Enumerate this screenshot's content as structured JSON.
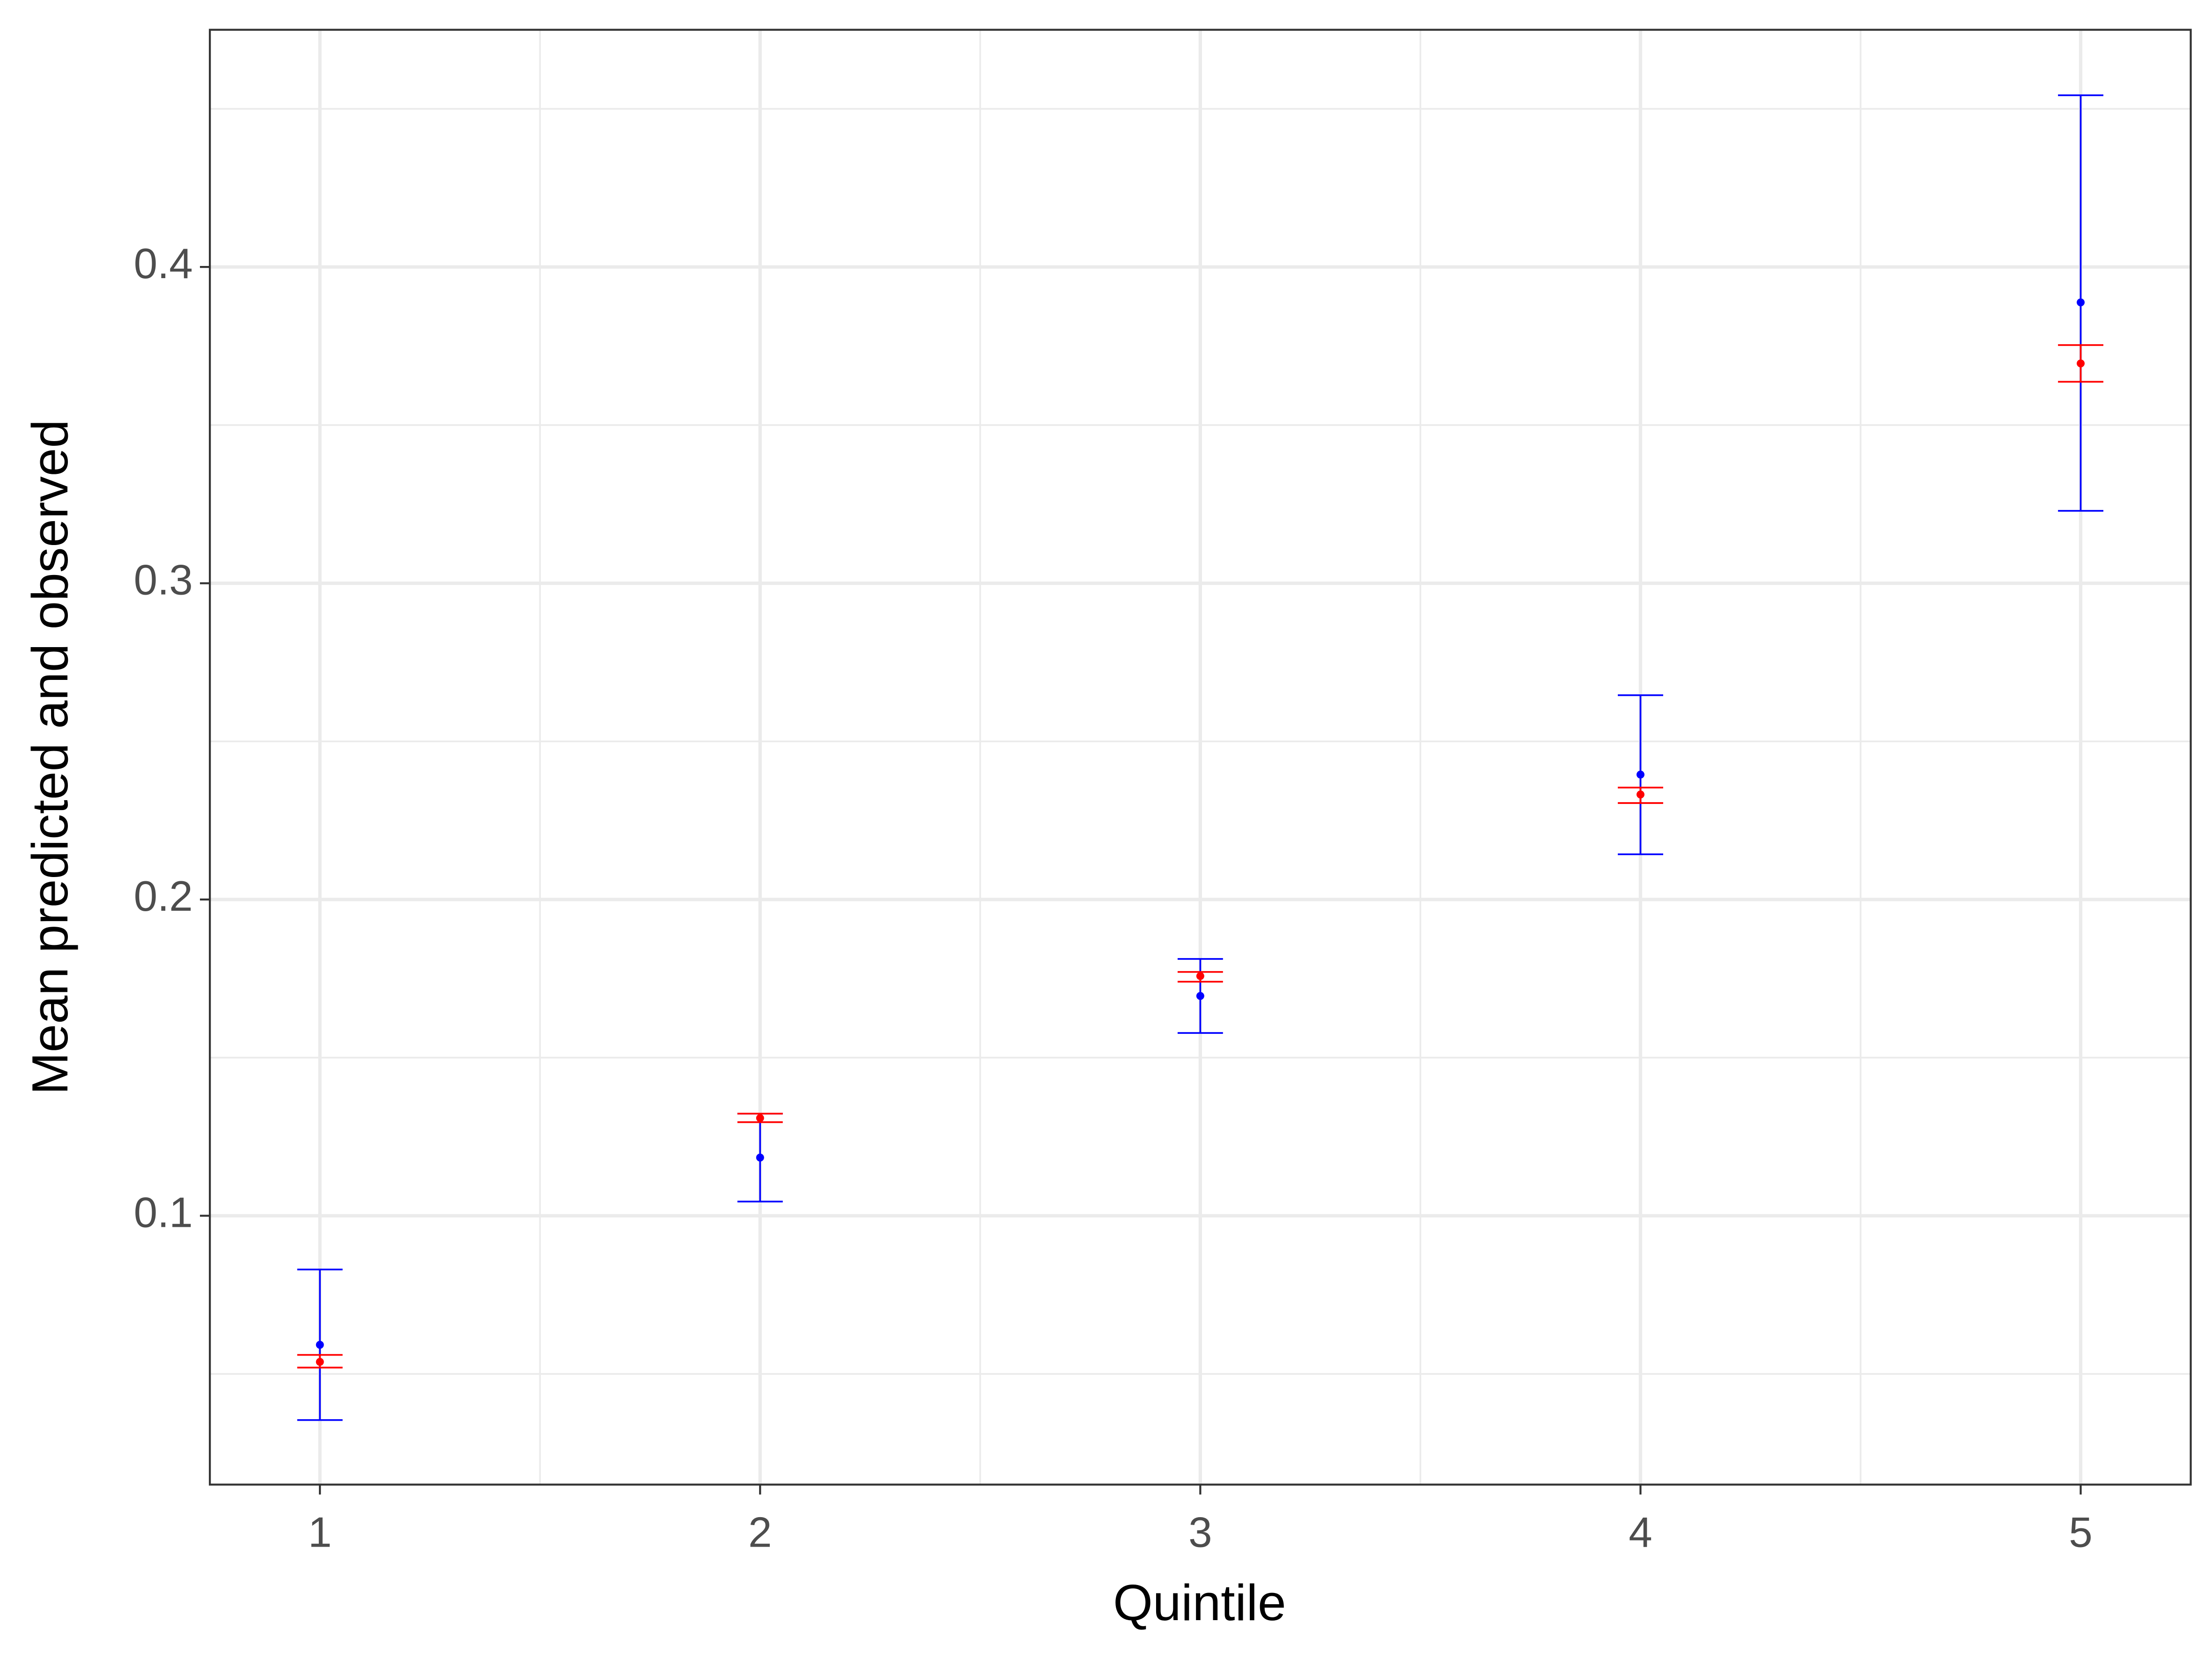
{
  "chart_data": {
    "type": "errorbar",
    "x_label": "Quintile",
    "y_label": "Mean predicted and observed",
    "xlim": [
      0.75,
      5.25
    ],
    "ylim": [
      0.015,
      0.475
    ],
    "xticks": [
      1,
      2,
      3,
      4,
      5
    ],
    "yticks": [
      0.1,
      0.2,
      0.3,
      0.4
    ],
    "xminor": [
      1.5,
      2.5,
      3.5,
      4.5
    ],
    "yminor": [
      0.05,
      0.15,
      0.25,
      0.35,
      0.45
    ],
    "grid": true,
    "series": [
      {
        "color": "#0000ff",
        "x": [
          1,
          2,
          3,
          4,
          5
        ],
        "values": [
          0.0592,
          0.1184,
          0.1695,
          0.2395,
          0.3888
        ],
        "lower": [
          0.0354,
          0.1045,
          0.1578,
          0.2143,
          0.3229
        ],
        "upper": [
          0.083,
          0.1323,
          0.1812,
          0.2646,
          0.4543
        ]
      },
      {
        "color": "#ff0000",
        "x": [
          1,
          2,
          3,
          4,
          5
        ],
        "values": [
          0.0538,
          0.1309,
          0.1758,
          0.2332,
          0.3695
        ],
        "lower": [
          0.052,
          0.1296,
          0.174,
          0.2305,
          0.3637
        ],
        "upper": [
          0.056,
          0.1323,
          0.1771,
          0.2354,
          0.3753
        ]
      }
    ]
  }
}
